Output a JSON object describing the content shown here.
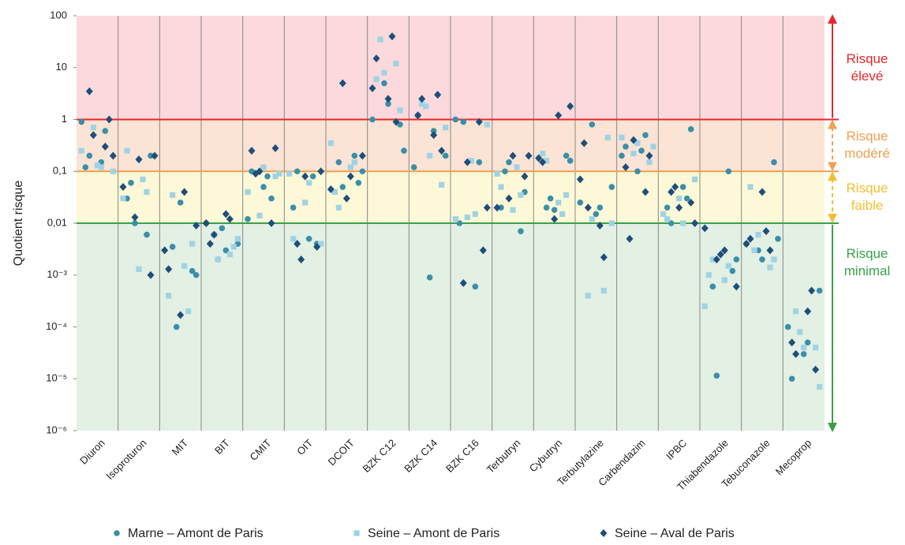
{
  "chart_data": {
    "type": "strip",
    "y_label": "Quotient risque",
    "log_y": true,
    "ylim": [
      1e-06,
      100
    ],
    "yticks": [
      100,
      10,
      1,
      {
        "value": 0.1,
        "label": "0,1"
      },
      {
        "value": 0.01,
        "label": "0,01"
      },
      {
        "value": 0.001,
        "label": "10⁻³"
      },
      {
        "value": 0.0001,
        "label": "10⁻⁴"
      },
      {
        "value": 1e-05,
        "label": "10⁻⁵"
      },
      {
        "value": 1e-06,
        "label": "10⁻⁶"
      }
    ],
    "legend_position": "bottom",
    "categories": [
      "Diuron",
      "Isoproturon",
      "MIT",
      "BIT",
      "CMIT",
      "OIT",
      "DCOIT",
      "BZK C12",
      "BZK C14",
      "BZK C16",
      "Terbutryn",
      "Cybutryn",
      "Terbutylazine",
      "Carbendazim",
      "IPBC",
      "Thiabendazole",
      "Tebuconazole",
      "Mecoprop"
    ],
    "series": [
      {
        "name": "Marne – Amont de Paris",
        "color": "#3a8fa8",
        "marker": "circle",
        "values": [
          [
            0.9,
            0.15,
            0.12,
            0.6,
            0.2
          ],
          [
            0.03,
            0.006,
            0.06,
            0.2,
            0.01
          ],
          [
            0.0035,
            0.0012,
            0.0001,
            0.001,
            0.025
          ],
          [
            0.002,
            0.004,
            0.008,
            0.01,
            0.003
          ],
          [
            0.05,
            0.012,
            0.08,
            0.1,
            0.03
          ],
          [
            0.005,
            0.02,
            0.08,
            0.1,
            0.004
          ],
          [
            0.2,
            0.15,
            0.06,
            0.05,
            0.1
          ],
          [
            0.8,
            5,
            0.25,
            2,
            1
          ],
          [
            0.2,
            0.0009,
            0.12,
            0.6,
            1.2
          ],
          [
            1,
            0.0006,
            0.01,
            0.15,
            0.9
          ],
          [
            0.02,
            0.007,
            0.1,
            0.04,
            0.15
          ],
          [
            0.02,
            0.2,
            0.03,
            0.16,
            0.018
          ],
          [
            0.8,
            0.05,
            0.015,
            0.025,
            0.02
          ],
          [
            0.1,
            0.2,
            0.25,
            0.3,
            0.5
          ],
          [
            0.05,
            0.02,
            0.03,
            0.01,
            0.65
          ],
          [
            0.1,
            0.0006,
            0.0012,
            1.15e-05,
            0.002
          ],
          [
            0.15,
            0.003,
            0.005,
            0.002,
            0.004
          ],
          [
            0.0005,
            3e-05,
            0.0001,
            5e-05,
            1e-05
          ]
        ]
      },
      {
        "name": "Seine – Amont de Paris",
        "color": "#9fd3e3",
        "marker": "square",
        "values": [
          [
            0.7,
            0.1,
            0.13,
            0.25,
            0.12
          ],
          [
            0.0013,
            0.03,
            0.07,
            0.25,
            0.04
          ],
          [
            0.0015,
            0.0004,
            0.0002,
            0.035,
            0.004
          ],
          [
            0.0025,
            0.006,
            0.0035,
            0.002,
            0.005
          ],
          [
            0.08,
            0.014,
            0.09,
            0.12,
            0.04
          ],
          [
            0.004,
            0.025,
            0.09,
            0.06,
            0.005
          ],
          [
            0.35,
            0.12,
            0.04,
            0.15,
            0.02
          ],
          [
            6,
            12,
            35,
            1.5,
            8
          ],
          [
            2,
            0.055,
            1.8,
            0.7,
            0.2
          ],
          [
            0.013,
            0.8,
            0.16,
            0.012,
            0.015
          ],
          [
            0.018,
            0.09,
            0.12,
            0.05,
            0.035
          ],
          [
            0.025,
            0.22,
            0.015,
            0.16,
            0.035
          ],
          [
            0.0005,
            0.0004,
            0.45,
            0.012,
            0.01
          ],
          [
            0.15,
            0.22,
            0.3,
            0.35,
            0.45
          ],
          [
            0.07,
            0.03,
            0.015,
            0.01,
            0.012
          ],
          [
            0.00025,
            0.0008,
            0.001,
            0.0015,
            0.002
          ],
          [
            0.05,
            0.0014,
            0.003,
            0.002,
            0.006
          ],
          [
            0.0002,
            4e-05,
            8e-05,
            7e-06,
            4e-05
          ]
        ]
      },
      {
        "name": "Seine – Aval de Paris",
        "color": "#1f4e79",
        "marker": "diamond",
        "values": [
          [
            0.3,
            3.5,
            1,
            0.5,
            0.2
          ],
          [
            0.001,
            0.013,
            0.2,
            0.17,
            0.05
          ],
          [
            0.009,
            0.00017,
            0.003,
            0.04,
            0.0013
          ],
          [
            0.01,
            0.015,
            0.004,
            0.012,
            0.006
          ],
          [
            0.25,
            0.01,
            0.09,
            0.28,
            0.1
          ],
          [
            0.004,
            0.0035,
            0.002,
            0.1,
            0.08
          ],
          [
            5,
            0.2,
            0.03,
            0.045,
            0.08
          ],
          [
            2.5,
            4,
            40,
            15,
            0.9
          ],
          [
            0.5,
            1.2,
            3,
            2.5,
            0.25
          ],
          [
            0.9,
            0.0007,
            0.003,
            0.15,
            0.02
          ],
          [
            0.08,
            0.03,
            0.2,
            0.2,
            0.02
          ],
          [
            1.8,
            0.012,
            0.18,
            1.2,
            0.15
          ],
          [
            0.07,
            0.009,
            0.35,
            0.0022,
            0.02
          ],
          [
            0.12,
            0.04,
            0.005,
            0.2,
            0.4
          ],
          [
            0.04,
            0.025,
            0.05,
            0.01,
            0.02
          ],
          [
            0.002,
            0.0006,
            0.0025,
            0.008,
            0.003
          ],
          [
            0.04,
            0.004,
            0.007,
            0.005,
            0.003
          ],
          [
            0.0002,
            5e-05,
            0.0005,
            3e-05,
            1.5e-05
          ]
        ]
      }
    ],
    "zones": [
      {
        "label": "Risque élevé",
        "from": 1,
        "to": 100,
        "fill": "#fbd9dc",
        "color": "#e8262a"
      },
      {
        "label": "Risque modéré",
        "from": 0.1,
        "to": 1,
        "fill": "#fbe3d5",
        "color": "#f0a050"
      },
      {
        "label": "Risque faible",
        "from": 0.01,
        "to": 0.1,
        "fill": "#fdf8d8",
        "color": "#f4c030"
      },
      {
        "label": "Risque minimal",
        "from": 1e-06,
        "to": 0.01,
        "fill": "#e3f0e4",
        "color": "#3aa04a"
      }
    ],
    "thresholds": [
      {
        "value": 1,
        "color": "#e8262a"
      },
      {
        "value": 0.1,
        "color": "#f0a050"
      },
      {
        "value": 0.01,
        "color": "#3aa04a"
      }
    ]
  }
}
